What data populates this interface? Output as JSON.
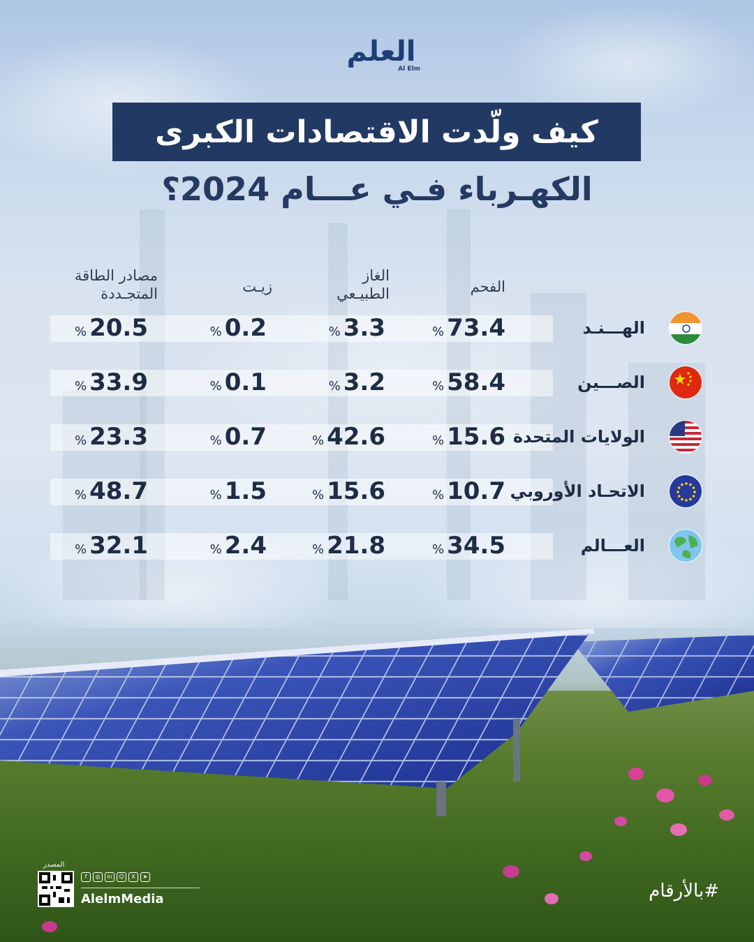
{
  "brand": {
    "name_ar": "العلم",
    "name_en": "Al Elm"
  },
  "title": "كيف ولّدت الاقتصادات الكبرى",
  "subtitle": "الكهـرباء فـي عـــام 2024؟",
  "table": {
    "columns": [
      "الفحم",
      "الغاز الطبيـعي",
      "زيـت",
      "مصادر الطاقة المتجـددة"
    ],
    "rows": [
      {
        "country": "الهـــنـد",
        "flag": "india-flag-icon",
        "coal": "73.4",
        "gas": "3.3",
        "oil": "0.2",
        "renewables": "20.5"
      },
      {
        "country": "الصـــين",
        "flag": "china-flag-icon",
        "coal": "58.4",
        "gas": "3.2",
        "oil": "0.1",
        "renewables": "33.9"
      },
      {
        "country": "الولايات المتحدة",
        "flag": "usa-flag-icon",
        "coal": "15.6",
        "gas": "42.6",
        "oil": "0.7",
        "renewables": "23.3"
      },
      {
        "country": "الاتحـاد الأوروبي",
        "flag": "eu-flag-icon",
        "coal": "10.7",
        "gas": "15.6",
        "oil": "1.5",
        "renewables": "48.7"
      },
      {
        "country": "العـــالم",
        "flag": "globe-icon",
        "coal": "34.5",
        "gas": "21.8",
        "oil": "2.4",
        "renewables": "32.1"
      }
    ],
    "unit": "%"
  },
  "footer": {
    "source_label": "المصدر",
    "handle": "AlelmMedia",
    "hashtag": "#بالأرقام",
    "social_icons": [
      "facebook-icon",
      "instagram-icon",
      "linkedin-icon",
      "snapchat-icon",
      "x-icon",
      "telegram-icon"
    ]
  },
  "colors": {
    "navy": "#223a63",
    "text": "#1e2c45"
  }
}
